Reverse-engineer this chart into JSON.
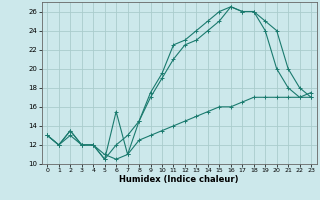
{
  "xlabel": "Humidex (Indice chaleur)",
  "background_color": "#cce8eb",
  "grid_color": "#aacccc",
  "line_color": "#1a7a6e",
  "xlim": [
    -0.5,
    23.5
  ],
  "ylim": [
    10,
    27
  ],
  "xticks": [
    0,
    1,
    2,
    3,
    4,
    5,
    6,
    7,
    8,
    9,
    10,
    11,
    12,
    13,
    14,
    15,
    16,
    17,
    18,
    19,
    20,
    21,
    22,
    23
  ],
  "yticks": [
    10,
    12,
    14,
    16,
    18,
    20,
    22,
    24,
    26
  ],
  "line1_x": [
    0,
    1,
    2,
    3,
    4,
    5,
    6,
    7,
    8,
    9,
    10,
    11,
    12,
    13,
    14,
    15,
    16,
    17,
    18,
    19,
    20,
    21,
    22,
    23
  ],
  "line1_y": [
    13,
    12,
    13,
    12,
    12,
    11,
    10.5,
    11,
    12.5,
    13,
    13.5,
    14,
    14.5,
    15,
    15.5,
    16,
    16,
    16.5,
    17,
    17,
    17,
    17,
    17,
    17.5
  ],
  "line2_x": [
    0,
    1,
    2,
    3,
    4,
    5,
    6,
    7,
    8,
    9,
    10,
    11,
    12,
    13,
    14,
    15,
    16,
    17,
    18,
    19,
    20,
    21,
    22,
    23
  ],
  "line2_y": [
    13,
    12,
    13.5,
    12,
    12,
    10.5,
    15.5,
    11,
    14.5,
    17.5,
    19.5,
    22.5,
    23,
    24,
    25,
    26,
    26.5,
    26,
    26,
    25,
    24,
    20,
    18,
    17
  ],
  "line3_x": [
    0,
    1,
    2,
    3,
    4,
    5,
    6,
    7,
    8,
    9,
    10,
    11,
    12,
    13,
    14,
    15,
    16,
    17,
    18,
    19,
    20,
    21,
    22,
    23
  ],
  "line3_y": [
    13,
    12,
    13.5,
    12,
    12,
    10.5,
    12,
    13,
    14.5,
    17,
    19,
    21,
    22.5,
    23,
    24,
    25,
    26.5,
    26,
    26,
    24,
    20,
    18,
    17,
    17
  ]
}
